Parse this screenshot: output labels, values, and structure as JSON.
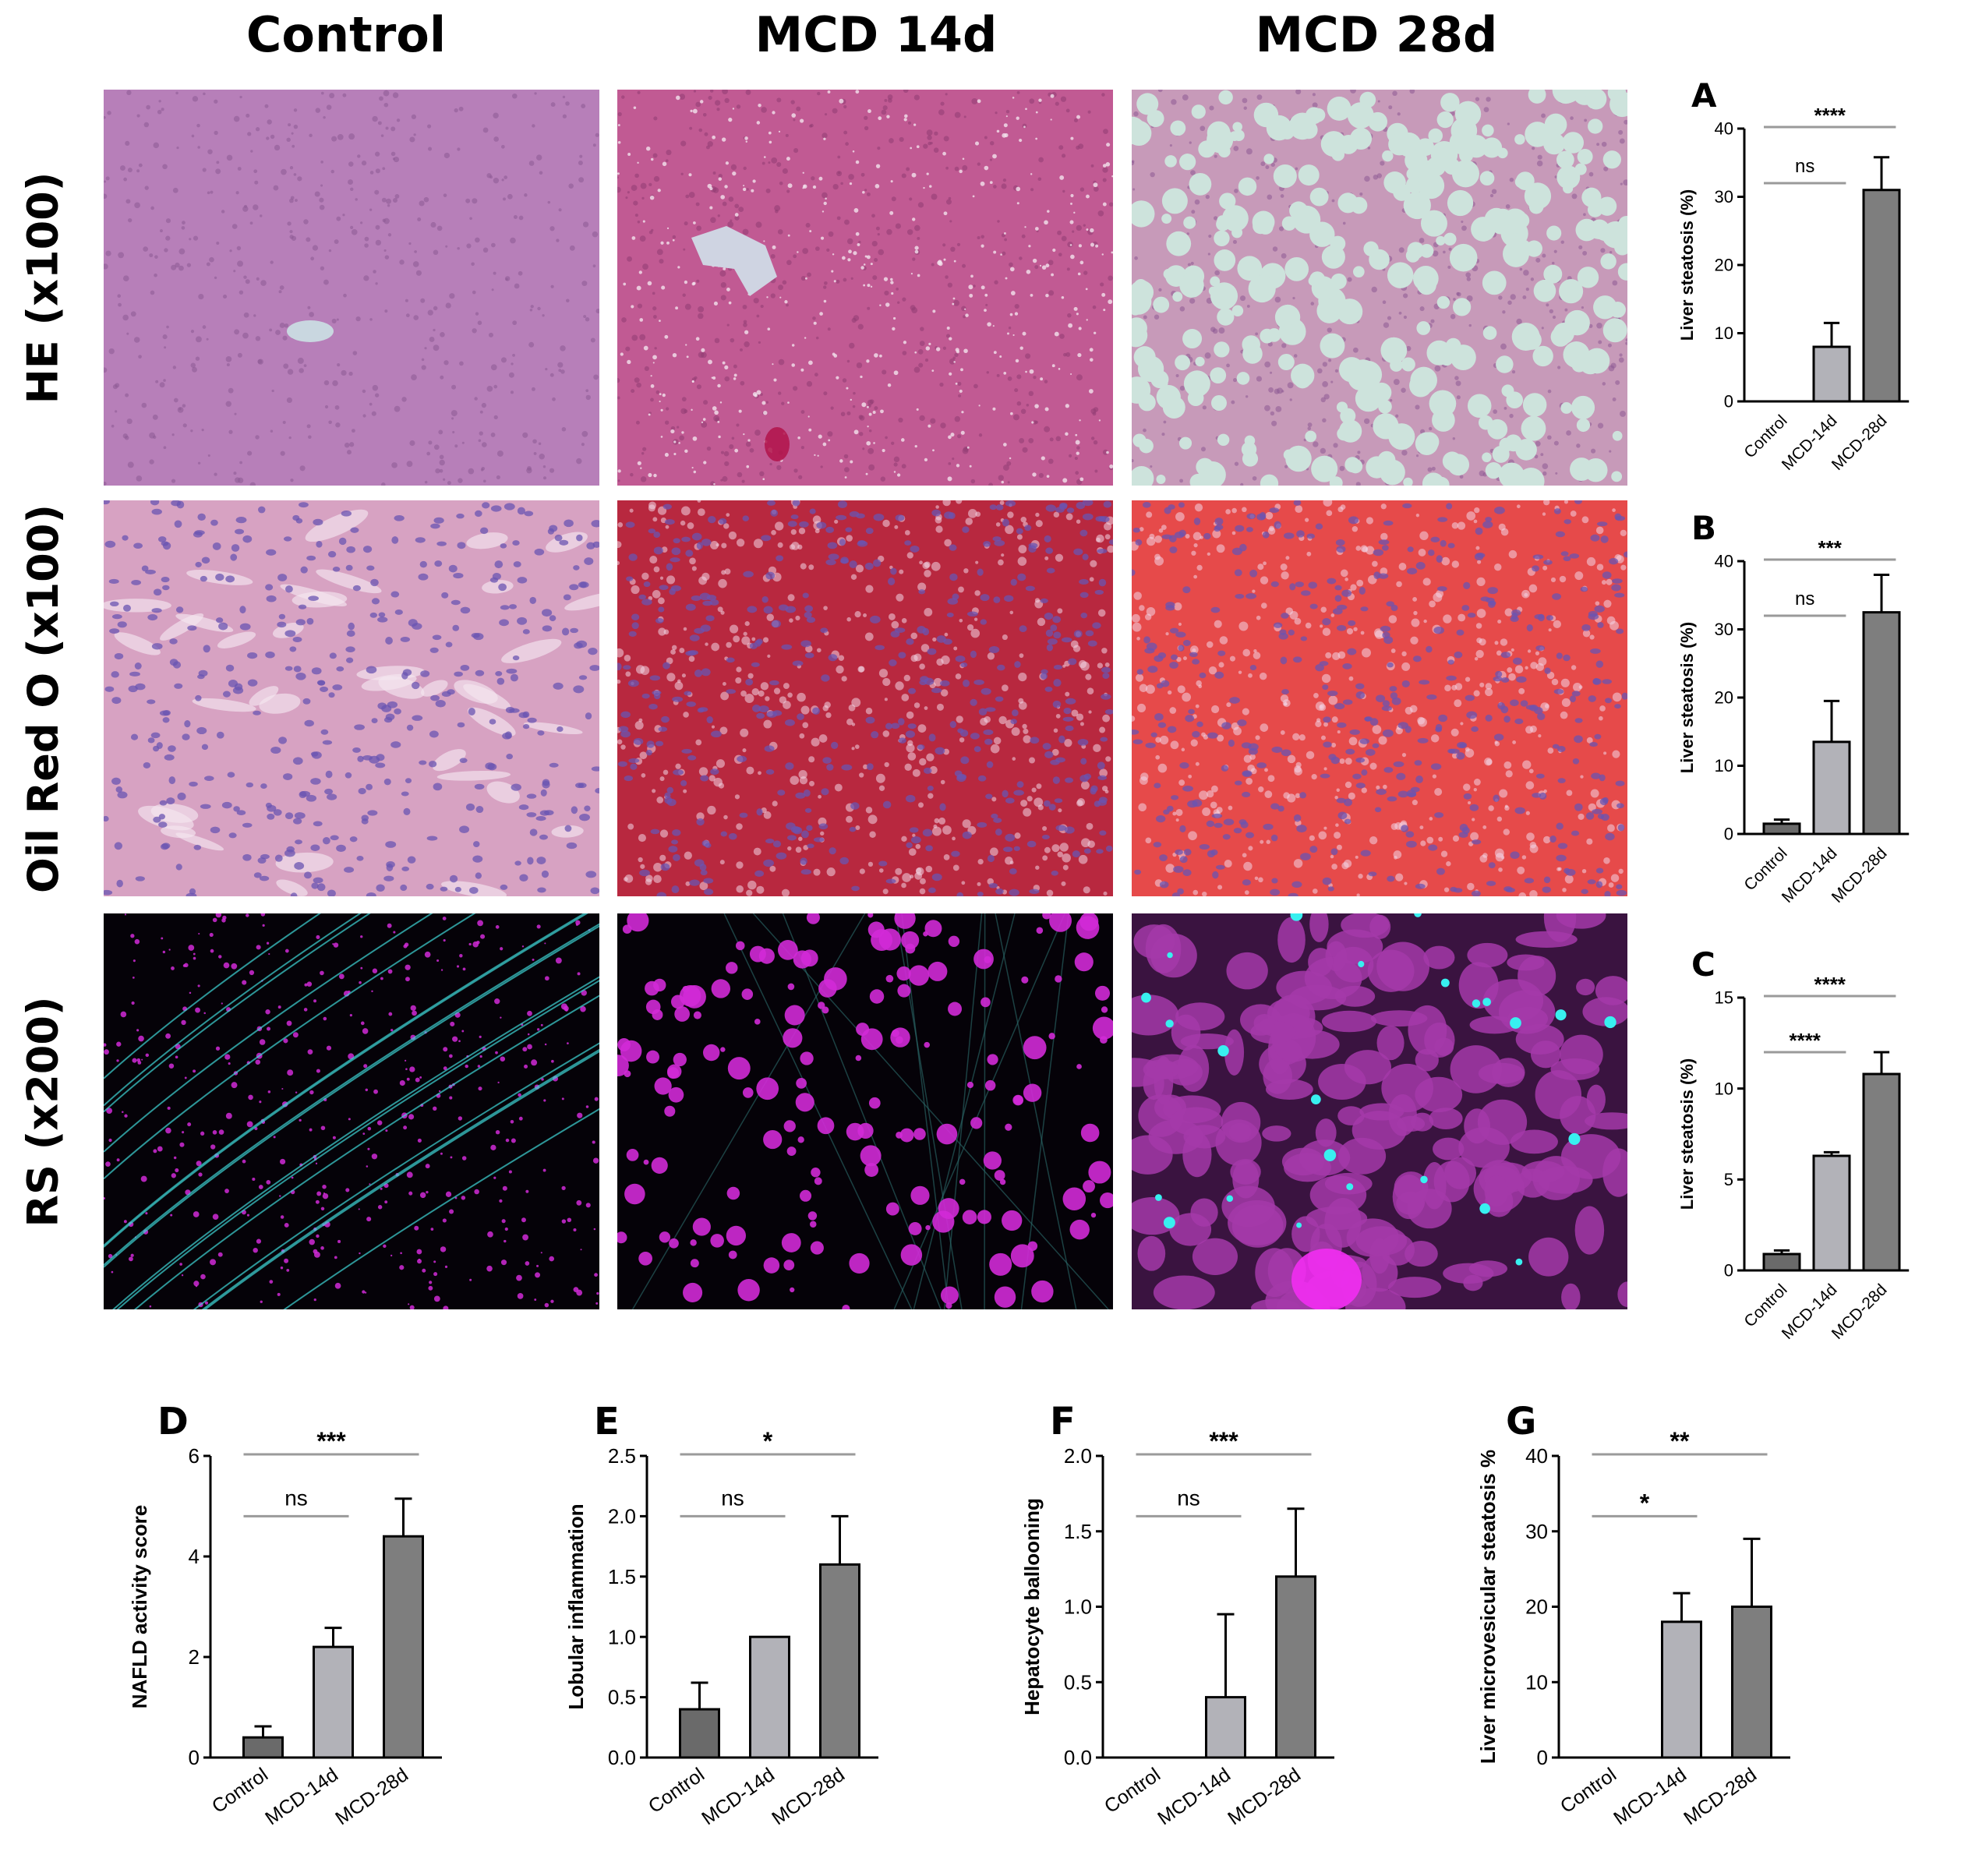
{
  "columns": [
    "Control",
    "MCD 14d",
    "MCD 28d"
  ],
  "rows": [
    "HE (x100)",
    "Oil Red O (x100)",
    "RS (x200)"
  ],
  "colors": {
    "control_bar": "#6a6a6a",
    "mcd14_bar": "#b2b2b8",
    "mcd28_bar": "#7e7e7e",
    "he_base": "#b77fb9",
    "oro_base": "#d7a2c2",
    "rs_base": "#050208",
    "lipid_magenta": "#d12ad7",
    "fiber_cyan": "#3fd6d6"
  },
  "chart_data": [
    {
      "id": "A",
      "type": "bar",
      "categories": [
        "Control",
        "MCD-14d",
        "MCD-28d"
      ],
      "values": [
        0,
        8,
        31
      ],
      "errors": [
        0,
        3.5,
        4.8
      ],
      "ylabel": "Liver steatosis (%)",
      "ylim": [
        0,
        40
      ],
      "yticks": [
        0,
        10,
        20,
        30,
        40
      ],
      "annotations": [
        {
          "label": "****",
          "from": "Control",
          "to": "MCD-28d"
        },
        {
          "label": "ns",
          "from": "Control",
          "to": "MCD-14d"
        }
      ]
    },
    {
      "id": "B",
      "type": "bar",
      "categories": [
        "Control",
        "MCD-14d",
        "MCD-28d"
      ],
      "values": [
        1.5,
        13.5,
        32.5
      ],
      "errors": [
        0.6,
        6,
        5.5
      ],
      "ylabel": "Liver steatosis (%)",
      "ylim": [
        0,
        40
      ],
      "yticks": [
        0,
        10,
        20,
        30,
        40
      ],
      "annotations": [
        {
          "label": "***",
          "from": "Control",
          "to": "MCD-28d"
        },
        {
          "label": "ns",
          "from": "Control",
          "to": "MCD-14d"
        }
      ]
    },
    {
      "id": "C",
      "type": "bar",
      "categories": [
        "Control",
        "MCD-14d",
        "MCD-28d"
      ],
      "values": [
        0.9,
        6.3,
        10.8
      ],
      "errors": [
        0.2,
        0.2,
        1.2
      ],
      "ylabel": "Liver steatosis (%)",
      "ylim": [
        0,
        15
      ],
      "yticks": [
        0,
        5,
        10,
        15
      ],
      "annotations": [
        {
          "label": "****",
          "from": "Control",
          "to": "MCD-28d"
        },
        {
          "label": "****",
          "from": "Control",
          "to": "MCD-14d"
        }
      ]
    },
    {
      "id": "D",
      "type": "bar",
      "categories": [
        "Control",
        "MCD-14d",
        "MCD-28d"
      ],
      "values": [
        0.4,
        2.2,
        4.4
      ],
      "errors": [
        0.22,
        0.38,
        0.75
      ],
      "ylabel": "NAFLD activity score",
      "ylim": [
        0,
        6
      ],
      "yticks": [
        0,
        2,
        4,
        6
      ],
      "annotations": [
        {
          "label": "***",
          "from": "Control",
          "to": "MCD-28d"
        },
        {
          "label": "ns",
          "from": "Control",
          "to": "MCD-14d"
        }
      ]
    },
    {
      "id": "E",
      "type": "bar",
      "categories": [
        "Control",
        "MCD-14d",
        "MCD-28d"
      ],
      "values": [
        0.4,
        1.0,
        1.6
      ],
      "errors": [
        0.22,
        0,
        0.4
      ],
      "ylabel": "Lobular inflammation",
      "ylim": [
        0,
        2.5
      ],
      "yticks": [
        "0.0",
        "0.5",
        "1.0",
        "1.5",
        "2.0",
        "2.5"
      ],
      "annotations": [
        {
          "label": "*",
          "from": "Control",
          "to": "MCD-28d"
        },
        {
          "label": "ns",
          "from": "Control",
          "to": "MCD-14d"
        }
      ]
    },
    {
      "id": "F",
      "type": "bar",
      "categories": [
        "Control",
        "MCD-14d",
        "MCD-28d"
      ],
      "values": [
        0,
        0.4,
        1.2
      ],
      "errors": [
        0,
        0.55,
        0.45
      ],
      "ylabel": "Hepatocyte ballooning",
      "ylim": [
        0,
        2
      ],
      "yticks": [
        "0.0",
        "0.5",
        "1.0",
        "1.5",
        "2.0"
      ],
      "annotations": [
        {
          "label": "***",
          "from": "Control",
          "to": "MCD-28d"
        },
        {
          "label": "ns",
          "from": "Control",
          "to": "MCD-14d"
        }
      ]
    },
    {
      "id": "G",
      "type": "bar",
      "categories": [
        "Control",
        "MCD-14d",
        "MCD-28d"
      ],
      "values": [
        0,
        18,
        20
      ],
      "errors": [
        0,
        3.8,
        9
      ],
      "ylabel": "Liver microvesicular steatosis %",
      "ylim": [
        0,
        40
      ],
      "yticks": [
        0,
        10,
        20,
        30,
        40
      ],
      "annotations": [
        {
          "label": "**",
          "from": "Control",
          "to": "MCD-28d"
        },
        {
          "label": "*",
          "from": "Control",
          "to": "MCD-14d"
        }
      ]
    }
  ]
}
